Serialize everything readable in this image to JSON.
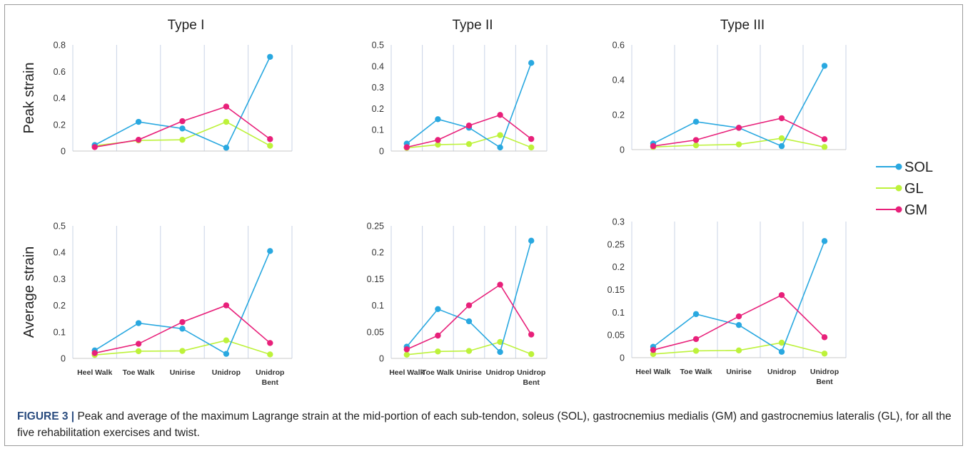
{
  "figure": {
    "caption_label": "FIGURE 3 |",
    "caption_text": " Peak and average of the maximum Lagrange strain at the mid-portion of each sub-tendon, soleus (SOL), gastrocnemius medialis (GM) and gastrocnemius lateralis (GL), for all the five rehabilitation exercises and twist."
  },
  "row_labels": [
    "Peak strain",
    "Average strain"
  ],
  "column_titles": [
    "Type I",
    "Type II",
    "Type III"
  ],
  "legend": [
    {
      "name": "SOL",
      "color": "#29a8e0"
    },
    {
      "name": "GL",
      "color": "#bdf23a"
    },
    {
      "name": "GM",
      "color": "#e8207a"
    }
  ],
  "categories": [
    "Heel Walk",
    "Toe Walk",
    "Unirise",
    "Unidrop",
    "Unidrop Bent"
  ],
  "chart_data": [
    {
      "type": "line",
      "title": "Type I",
      "ylabel": "Peak strain",
      "ylim": [
        0,
        0.8
      ],
      "yticks": [
        "0",
        "0.2",
        "0.4",
        "0.6",
        "0.8"
      ],
      "categories": [
        "Heel Walk",
        "Toe Walk",
        "Unirise",
        "Unidrop",
        "Unidrop Bent"
      ],
      "series": [
        {
          "name": "SOL",
          "values": [
            0.045,
            0.22,
            0.17,
            0.025,
            0.71
          ]
        },
        {
          "name": "GL",
          "values": [
            0.04,
            0.08,
            0.085,
            0.22,
            0.04
          ]
        },
        {
          "name": "GM",
          "values": [
            0.03,
            0.085,
            0.225,
            0.335,
            0.09
          ]
        }
      ]
    },
    {
      "type": "line",
      "title": "Type II",
      "ylabel": "",
      "ylim": [
        0,
        0.5
      ],
      "yticks": [
        "0",
        "0.1",
        "0.2",
        "0.3",
        "0.4",
        "0.5"
      ],
      "categories": [
        "Heel Walk",
        "Toe Walk",
        "Unirise",
        "Unidrop",
        "Unidrop Bent"
      ],
      "series": [
        {
          "name": "SOL",
          "values": [
            0.035,
            0.15,
            0.11,
            0.017,
            0.415
          ]
        },
        {
          "name": "GL",
          "values": [
            0.015,
            0.03,
            0.033,
            0.075,
            0.017
          ]
        },
        {
          "name": "GM",
          "values": [
            0.018,
            0.052,
            0.12,
            0.17,
            0.057
          ]
        }
      ]
    },
    {
      "type": "line",
      "title": "Type III",
      "ylabel": "",
      "ylim": [
        0,
        0.6
      ],
      "yticks": [
        "0",
        "0.2",
        "0.4",
        "0.6"
      ],
      "categories": [
        "Heel Walk",
        "Toe Walk",
        "Unirise",
        "Unidrop",
        "Unidrop Bent"
      ],
      "series": [
        {
          "name": "SOL",
          "values": [
            0.035,
            0.16,
            0.125,
            0.02,
            0.48
          ]
        },
        {
          "name": "GL",
          "values": [
            0.015,
            0.025,
            0.03,
            0.065,
            0.015
          ]
        },
        {
          "name": "GM",
          "values": [
            0.02,
            0.055,
            0.125,
            0.18,
            0.06
          ]
        }
      ]
    },
    {
      "type": "line",
      "title": "",
      "ylabel": "Average strain",
      "ylim": [
        0,
        0.5
      ],
      "yticks": [
        "0",
        "0.1",
        "0.2",
        "0.3",
        "0.4",
        "0.5"
      ],
      "categories": [
        "Heel Walk",
        "Toe Walk",
        "Unirise",
        "Unidrop",
        "Unidrop Bent"
      ],
      "series": [
        {
          "name": "SOL",
          "values": [
            0.03,
            0.133,
            0.112,
            0.017,
            0.405
          ]
        },
        {
          "name": "GL",
          "values": [
            0.013,
            0.027,
            0.028,
            0.068,
            0.015
          ]
        },
        {
          "name": "GM",
          "values": [
            0.02,
            0.055,
            0.137,
            0.2,
            0.058
          ]
        }
      ]
    },
    {
      "type": "line",
      "title": "",
      "ylabel": "",
      "ylim": [
        0,
        0.25
      ],
      "yticks": [
        "0",
        "0.05",
        "0.1",
        "0.15",
        "0.2",
        "0.25"
      ],
      "categories": [
        "Heel Walk",
        "Toe Walk",
        "Unirise",
        "Unidrop",
        "Unidrop Bent"
      ],
      "series": [
        {
          "name": "SOL",
          "values": [
            0.022,
            0.093,
            0.07,
            0.012,
            0.222
          ]
        },
        {
          "name": "GL",
          "values": [
            0.007,
            0.013,
            0.014,
            0.031,
            0.008
          ]
        },
        {
          "name": "GM",
          "values": [
            0.017,
            0.043,
            0.1,
            0.139,
            0.045
          ]
        }
      ]
    },
    {
      "type": "line",
      "title": "",
      "ylabel": "",
      "ylim": [
        0,
        0.3
      ],
      "yticks": [
        "0",
        "0.05",
        "0.1",
        "0.15",
        "0.2",
        "0.25",
        "0.3"
      ],
      "categories": [
        "Heel Walk",
        "Toe Walk",
        "Unirise",
        "Unidrop",
        "Unidrop Bent"
      ],
      "series": [
        {
          "name": "SOL",
          "values": [
            0.024,
            0.096,
            0.072,
            0.013,
            0.257
          ]
        },
        {
          "name": "GL",
          "values": [
            0.008,
            0.015,
            0.016,
            0.033,
            0.009
          ]
        },
        {
          "name": "GM",
          "values": [
            0.017,
            0.041,
            0.091,
            0.138,
            0.045
          ]
        }
      ]
    }
  ]
}
